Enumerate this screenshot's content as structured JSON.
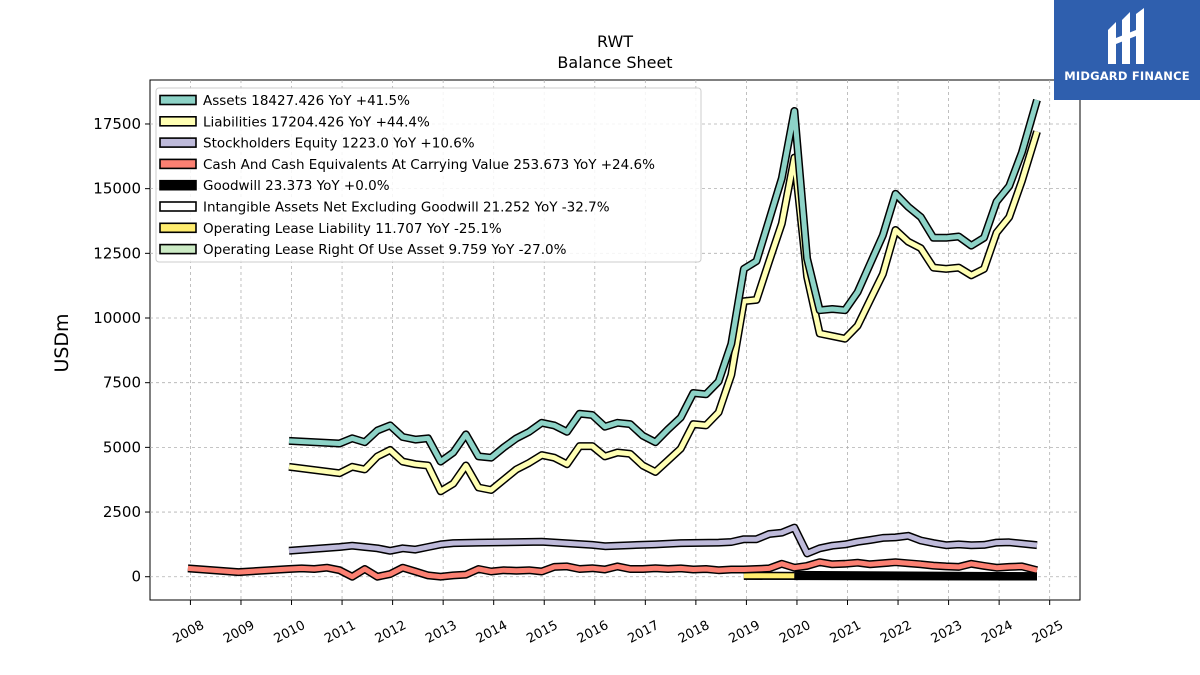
{
  "brand": {
    "name": "MIDGARD FINANCE",
    "color": "#2f5fae"
  },
  "chart_data": {
    "type": "line",
    "title": "RWT",
    "subtitle": "Balance  Sheet",
    "xlabel": "",
    "ylabel": "USDm",
    "xlim": [
      2007.2,
      2025.6
    ],
    "ylim": [
      -900,
      19200
    ],
    "yticks": [
      0,
      2500,
      5000,
      7500,
      10000,
      12500,
      15000,
      17500
    ],
    "ytick_labels": [
      "0",
      "2500",
      "5000",
      "7500",
      "10000",
      "12500",
      "15000",
      "17500"
    ],
    "xticks": [
      2008,
      2009,
      2010,
      2011,
      2012,
      2013,
      2014,
      2015,
      2016,
      2017,
      2018,
      2019,
      2020,
      2021,
      2022,
      2023,
      2024,
      2025
    ],
    "xtick_labels": [
      "2008",
      "2009",
      "2010",
      "2011",
      "2012",
      "2013",
      "2014",
      "2015",
      "2016",
      "2017",
      "2018",
      "2019",
      "2020",
      "2021",
      "2022",
      "2023",
      "2024",
      "2025"
    ],
    "grid": true,
    "legend_position": "top-left",
    "series": [
      {
        "name": "Assets  18427.426 YoY +41.5%",
        "color": "#8dd3c7",
        "x": [
          2009.95,
          2010.95,
          2011.2,
          2011.45,
          2011.7,
          2011.95,
          2012.2,
          2012.45,
          2012.7,
          2012.95,
          2013.2,
          2013.45,
          2013.7,
          2013.95,
          2014.2,
          2014.45,
          2014.7,
          2014.95,
          2015.2,
          2015.45,
          2015.7,
          2015.95,
          2016.2,
          2016.45,
          2016.7,
          2016.95,
          2017.2,
          2017.45,
          2017.7,
          2017.95,
          2018.2,
          2018.45,
          2018.7,
          2018.95,
          2019.2,
          2019.45,
          2019.7,
          2019.95,
          2020.2,
          2020.45,
          2020.7,
          2020.95,
          2021.2,
          2021.45,
          2021.7,
          2021.95,
          2022.2,
          2022.45,
          2022.7,
          2022.95,
          2023.2,
          2023.45,
          2023.7,
          2023.95,
          2024.2,
          2024.45,
          2024.75
        ],
        "values": [
          5250,
          5150,
          5350,
          5200,
          5650,
          5850,
          5400,
          5300,
          5350,
          4450,
          4800,
          5500,
          4650,
          4600,
          5000,
          5350,
          5600,
          5950,
          5850,
          5600,
          6300,
          6250,
          5800,
          5950,
          5900,
          5450,
          5200,
          5700,
          6150,
          7100,
          7050,
          7550,
          9000,
          11900,
          12200,
          13800,
          15400,
          18000,
          12300,
          10300,
          10350,
          10300,
          11000,
          12100,
          13200,
          14800,
          14300,
          13900,
          13100,
          13100,
          13150,
          12800,
          13100,
          14500,
          15100,
          16400,
          18427.426
        ]
      },
      {
        "name": "Liabilities  17204.426 YoY +44.4%",
        "color": "#ffffb3",
        "x": [
          2009.95,
          2010.95,
          2011.2,
          2011.45,
          2011.7,
          2011.95,
          2012.2,
          2012.45,
          2012.7,
          2012.95,
          2013.2,
          2013.45,
          2013.7,
          2013.95,
          2014.2,
          2014.45,
          2014.7,
          2014.95,
          2015.2,
          2015.45,
          2015.7,
          2015.95,
          2016.2,
          2016.45,
          2016.7,
          2016.95,
          2017.2,
          2017.45,
          2017.7,
          2017.95,
          2018.2,
          2018.45,
          2018.7,
          2018.95,
          2019.2,
          2019.45,
          2019.7,
          2019.95,
          2020.2,
          2020.45,
          2020.7,
          2020.95,
          2021.2,
          2021.45,
          2021.7,
          2021.95,
          2022.2,
          2022.45,
          2022.7,
          2022.95,
          2023.2,
          2023.45,
          2023.7,
          2023.95,
          2024.2,
          2024.45,
          2024.75
        ],
        "values": [
          4250,
          4000,
          4250,
          4150,
          4650,
          4900,
          4450,
          4350,
          4300,
          3300,
          3600,
          4300,
          3450,
          3350,
          3750,
          4150,
          4400,
          4700,
          4600,
          4350,
          5050,
          5050,
          4650,
          4800,
          4750,
          4300,
          4050,
          4500,
          4950,
          5900,
          5850,
          6350,
          7800,
          10650,
          10700,
          12200,
          13650,
          16200,
          11600,
          9400,
          9300,
          9200,
          9700,
          10700,
          11700,
          13400,
          12950,
          12700,
          11950,
          11900,
          11950,
          11650,
          11900,
          13300,
          13900,
          15300,
          17204.426
        ]
      },
      {
        "name": "Stockholders Equity  1223.0 YoY +10.6%",
        "color": "#bebada",
        "x": [
          2009.95,
          2010.95,
          2011.2,
          2011.45,
          2011.7,
          2011.95,
          2012.2,
          2012.45,
          2012.7,
          2012.95,
          2013.2,
          2013.7,
          2014.95,
          2015.95,
          2016.2,
          2016.7,
          2017.2,
          2017.7,
          2018.45,
          2018.7,
          2018.95,
          2019.2,
          2019.45,
          2019.7,
          2019.95,
          2020.2,
          2020.45,
          2020.7,
          2020.95,
          2021.2,
          2021.45,
          2021.7,
          2021.95,
          2022.2,
          2022.45,
          2022.7,
          2022.95,
          2023.2,
          2023.45,
          2023.7,
          2023.95,
          2024.2,
          2024.75
        ],
        "values": [
          1000,
          1150,
          1200,
          1150,
          1100,
          1000,
          1100,
          1050,
          1150,
          1250,
          1300,
          1320,
          1350,
          1230,
          1180,
          1220,
          1250,
          1300,
          1320,
          1340,
          1450,
          1450,
          1650,
          1700,
          1900,
          900,
          1100,
          1200,
          1250,
          1350,
          1420,
          1500,
          1520,
          1580,
          1400,
          1300,
          1220,
          1250,
          1220,
          1230,
          1320,
          1330,
          1223.0
        ]
      },
      {
        "name": "Cash And Cash Equivalents At Carrying Value  253.673 YoY +24.6%",
        "color": "#fb8072",
        "x": [
          2007.95,
          2008.95,
          2009.95,
          2010.2,
          2010.45,
          2010.7,
          2010.95,
          2011.2,
          2011.45,
          2011.7,
          2011.95,
          2012.2,
          2012.45,
          2012.7,
          2012.95,
          2013.2,
          2013.45,
          2013.7,
          2013.95,
          2014.2,
          2014.45,
          2014.7,
          2014.95,
          2015.2,
          2015.45,
          2015.7,
          2015.95,
          2016.2,
          2016.45,
          2016.7,
          2016.95,
          2017.2,
          2017.45,
          2017.7,
          2017.95,
          2018.2,
          2018.45,
          2018.7,
          2018.95,
          2019.2,
          2019.45,
          2019.7,
          2019.95,
          2020.2,
          2020.45,
          2020.7,
          2020.95,
          2021.2,
          2021.45,
          2021.7,
          2021.95,
          2022.2,
          2022.45,
          2022.7,
          2022.95,
          2023.2,
          2023.45,
          2023.7,
          2023.95,
          2024.2,
          2024.45,
          2024.75
        ],
        "values": [
          320,
          180,
          300,
          320,
          300,
          350,
          250,
          0,
          300,
          0,
          100,
          350,
          200,
          50,
          0,
          50,
          80,
          300,
          200,
          250,
          230,
          250,
          200,
          380,
          400,
          300,
          330,
          280,
          400,
          300,
          300,
          330,
          300,
          320,
          280,
          300,
          250,
          280,
          280,
          300,
          320,
          500,
          350,
          420,
          560,
          480,
          500,
          540,
          480,
          520,
          560,
          520,
          480,
          430,
          400,
          380,
          500,
          420,
          350,
          380,
          400,
          253.673
        ]
      },
      {
        "name": "Goodwill  23.373 YoY +0.0%",
        "color": "#000000",
        "x": [
          2019.95,
          2024.75
        ],
        "values": [
          23.373,
          23.373
        ]
      },
      {
        "name": "Intangible Assets Net Excluding Goodwill  21.252 YoY -32.7%",
        "color": "#ffffff",
        "x": [
          2019.95,
          2024.75
        ],
        "values": [
          70,
          21.252
        ]
      },
      {
        "name": "Operating Lease Liability  11.707 YoY -25.1%",
        "color": "#ffed6f",
        "x": [
          2018.95,
          2024.75
        ],
        "values": [
          40,
          11.707
        ]
      },
      {
        "name": "Operating Lease Right Of Use Asset  9.759 YoY -27.0%",
        "color": "#ccebc5",
        "x": [
          2018.95,
          2024.75
        ],
        "values": [
          30,
          9.759
        ]
      }
    ]
  }
}
